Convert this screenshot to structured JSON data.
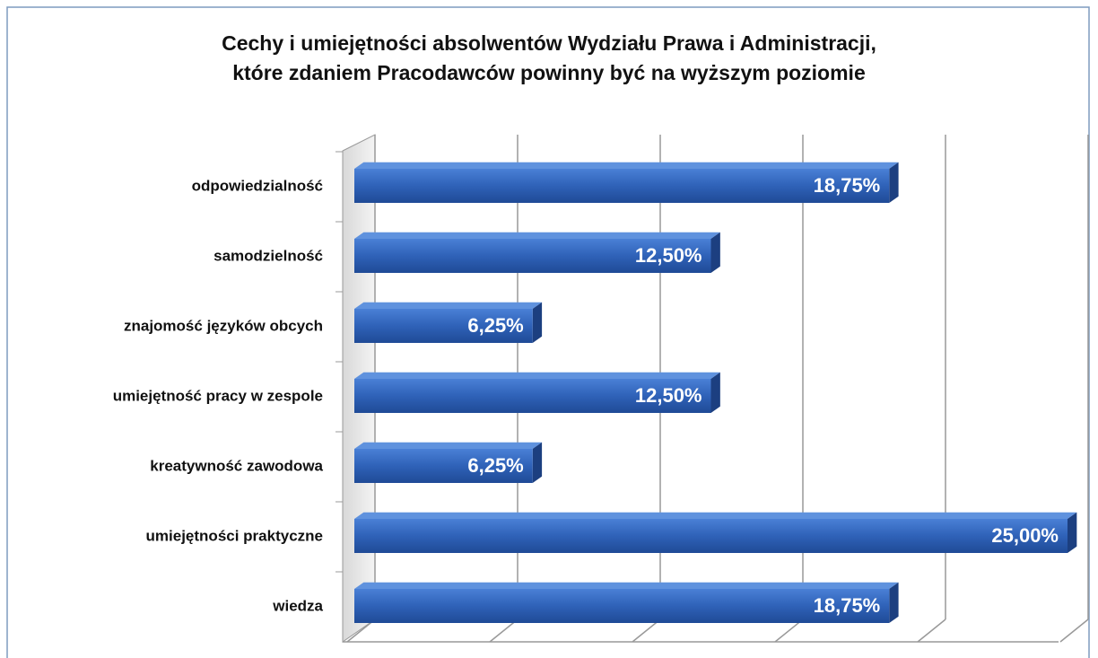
{
  "chart_data": {
    "type": "bar",
    "orientation": "horizontal",
    "title": "Cechy i umiejętności absolwentów Wydziału Prawa i Administracji,",
    "subtitle": "które zdaniem Pracodawców powinny być na wyższym poziomie",
    "categories": [
      "odpowiedzialność",
      "samodzielność",
      "znajomość języków obcych",
      "umiejętność pracy w zespole",
      "kreatywność zawodowa",
      "umiejętności praktyczne",
      "wiedza"
    ],
    "values": [
      18.75,
      12.5,
      6.25,
      12.5,
      6.25,
      25,
      18.75
    ],
    "value_labels": [
      "18,75%",
      "12,50%",
      "6,25%",
      "12,50%",
      "6,25%",
      "25,00%",
      "18,75%"
    ],
    "color": "#2f62b8",
    "xlim": [
      0,
      25
    ],
    "xticks": [
      0,
      5,
      10,
      15,
      20,
      25
    ],
    "grid": true
  }
}
